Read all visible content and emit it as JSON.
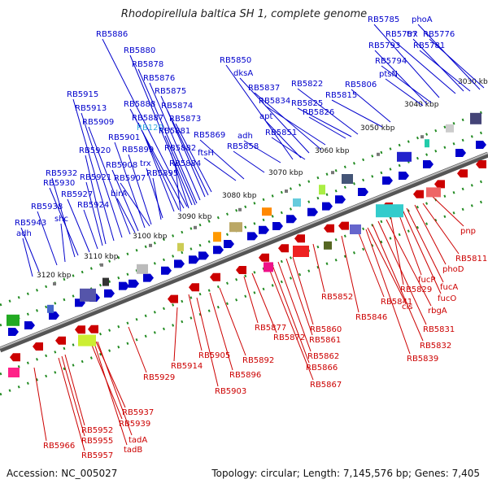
{
  "title": "Rhodopirellula baltica SH 1, complete genome",
  "accession_label": "Accession: NC_005027",
  "summary_label": "Topology: circular; Length: 7,145,576 bp; Genes: 7,405",
  "colors": {
    "forward_strand": "#0000cc",
    "reverse_strand": "#cc0000",
    "highlight_label": "#33aadd",
    "backbone": "#888888",
    "tick_marker": "#228b22"
  },
  "ticks": [
    "3030 kbp",
    "3040 kbp",
    "3050 kbp",
    "3060 kbp",
    "3070 kbp",
    "3080 kbp",
    "3090 kbp",
    "3100 kbp",
    "3110 kbp",
    "3120 kbp"
  ],
  "forward_labels": [
    "phoA",
    "RB5785",
    "RB5787",
    "trx",
    "RB5776",
    "RB5781",
    "RB5793",
    "RB5794",
    "ptsN",
    "RB5806",
    "RB5815",
    "RB5822",
    "RB5825",
    "RB5826",
    "RB5834",
    "RB5837",
    "dksA",
    "RB5850",
    "apt",
    "RB5851",
    "adh",
    "RB5858",
    "RB5869",
    "ftsH",
    "RB5873",
    "RB5874",
    "RB5875",
    "RB5876",
    "RB5878",
    "RB5880",
    "RB5886",
    "RB5888",
    "RB5887",
    "RB120",
    "RB5881",
    "RB5882",
    "RB5884",
    "trx",
    "RB5895",
    "RB5899",
    "RB5901",
    "RB5907",
    "RB5908",
    "birA",
    "RB5909",
    "RB5913",
    "RB5915",
    "RB5920",
    "RB5921",
    "RB5924",
    "RB5927",
    "RB5930",
    "RB5932",
    "shc",
    "RB5938",
    "RB5943",
    "adh"
  ],
  "reverse_labels": [
    "pnp",
    "RB5811",
    "phoD",
    "fucA",
    "fucO",
    "fucP",
    "RB5829",
    "rbgA",
    "RB5831",
    "RB5832",
    "RB5839",
    "cls",
    "RB5841",
    "RB5846",
    "RB5852",
    "RB5860",
    "RB5861",
    "RB5862",
    "RB5866",
    "RB5867",
    "RB5877",
    "RB5872",
    "RB5892",
    "RB5896",
    "RB5903",
    "RB5905",
    "RB5914",
    "RB5929",
    "RB5937",
    "RB5939",
    "tadA",
    "tadB",
    "RB5952",
    "RB5955",
    "RB5957",
    "RB5966"
  ]
}
